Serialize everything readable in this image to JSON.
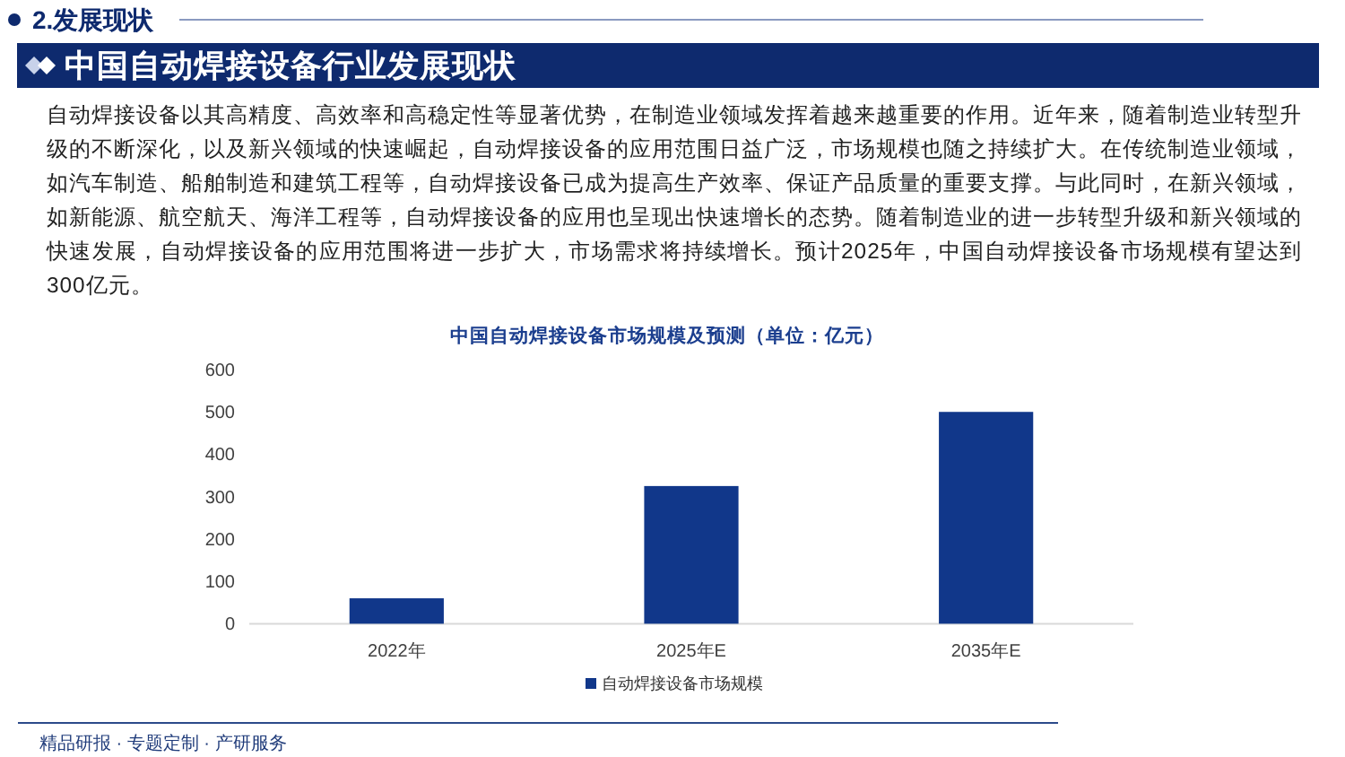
{
  "chart_data": {
    "type": "bar",
    "title": "中国自动焊接设备市场规模及预测（单位：亿元）",
    "categories": [
      "2022年",
      "2025年E",
      "2035年E"
    ],
    "series": [
      {
        "name": "自动焊接设备市场规模",
        "color": "#11378a",
        "values": [
          60,
          325,
          500
        ]
      }
    ],
    "ylim": [
      0,
      600
    ],
    "yticks": [
      0,
      100,
      200,
      300,
      400,
      500,
      600
    ],
    "legend": "bottom",
    "annotations": [
      "2.发展现状",
      "中国自动焊接设备行业发展现状",
      "自动焊接设备以其高精度、高效率和高稳定性等显著优势，在制造业领域发挥着越来越重要的作用。近年来，随着制造业转型升级的不断深化，以及新兴领域的快速崛起，自动焊接设备的应用范围日益广泛，市场规模也随之持续扩大。在传统制造业领域，如汽车制造、船舶制造和建筑工程等，自动焊接设备已成为提高生产效率、保证产品质量的重要支撑。与此同时，在新兴领域，如新能源、航空航天、海洋工程等，自动焊接设备的应用也呈现出快速增长的态势。随着制造业的进一步转型升级和新兴领域的快速发展，自动焊接设备的应用范围将进一步扩大，市场需求将持续增长。预计2025年，中国自动焊接设备市场规模有望达到300亿元。",
      "精品研报 · 专题定制 · 产研服务"
    ]
  }
}
